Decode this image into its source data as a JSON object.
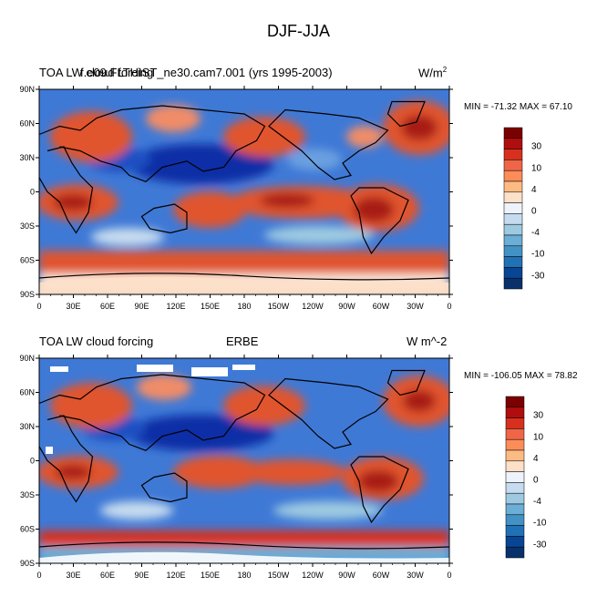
{
  "figure": {
    "title": "DJF-JJA"
  },
  "panels": [
    {
      "left_title": "TOA LW cloud forcing",
      "center_title": "f.e09.FLTHIST_ne30.cam7.001 (yrs 1995-2003)",
      "units_main": "W/m",
      "units_sup": "2",
      "stats": "MIN = -71.32 MAX =  67.10"
    },
    {
      "left_title": "TOA LW cloud forcing",
      "center_title": "ERBE",
      "units_main": "W m^-2",
      "units_sup": "",
      "stats": "MIN = -106.05 MAX =  78.82"
    }
  ],
  "axes": {
    "lat_ticks": [
      "90N",
      "60N",
      "30N",
      "0",
      "30S",
      "60S",
      "90S"
    ],
    "lon_ticks": [
      "0",
      "30E",
      "60E",
      "90E",
      "120E",
      "150E",
      "180",
      "150W",
      "120W",
      "90W",
      "60W",
      "30W",
      "0"
    ]
  },
  "colorbar": {
    "labels": [
      "30",
      "10",
      "4",
      "0",
      "-4",
      "-10",
      "-30"
    ],
    "colors": [
      "#7b0000",
      "#b00e0e",
      "#d7301f",
      "#ef6548",
      "#fc8d59",
      "#fdbb84",
      "#fde0c8",
      "#eef3fb",
      "#c6dbef",
      "#9ecae1",
      "#6baed6",
      "#4292c6",
      "#2171b5",
      "#084594",
      "#08306b"
    ]
  },
  "palette": {
    "background_blue": "#3f79d6",
    "warm": "#e0552e",
    "warm_dark": "#a81b12",
    "deep_blue": "#0c2fa6",
    "light": "#fbe3d3",
    "white": "#ffffff"
  }
}
